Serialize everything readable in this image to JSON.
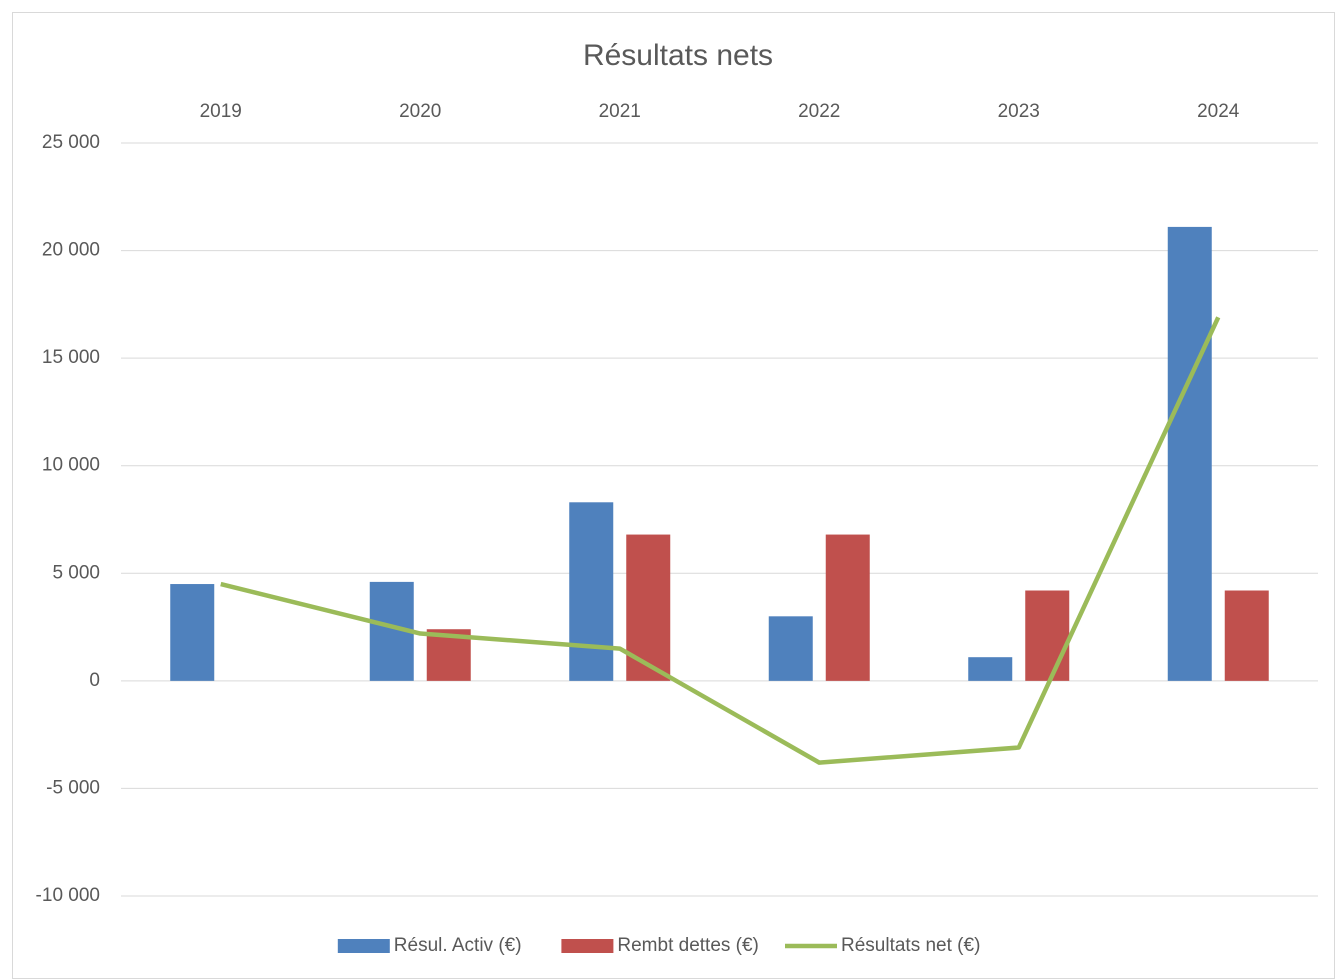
{
  "chart_data": {
    "type": "bar",
    "title": "Résultats nets",
    "categories": [
      "2019",
      "2020",
      "2021",
      "2022",
      "2023",
      "2024"
    ],
    "series": [
      {
        "name": "Résul. Activ (€)",
        "color": "#4f81bd",
        "type": "bar",
        "values": [
          4500,
          4600,
          8300,
          3000,
          1100,
          21100
        ]
      },
      {
        "name": "Rembt dettes (€)",
        "color": "#c0504d",
        "type": "bar",
        "values": [
          0,
          2400,
          6800,
          6800,
          4200,
          4200
        ]
      },
      {
        "name": "Résultats net (€)",
        "color": "#9bbb59",
        "type": "line",
        "values": [
          4500,
          2200,
          1500,
          -3800,
          -3100,
          16900
        ]
      }
    ],
    "ylim": [
      -10000,
      25000
    ],
    "yticks": [
      {
        "value": -10000,
        "label": "-10 000"
      },
      {
        "value": -5000,
        "label": "-5 000"
      },
      0,
      {
        "value": 5000,
        "label": "5 000"
      },
      {
        "value": 10000,
        "label": "10 000"
      },
      {
        "value": 15000,
        "label": "15 000"
      },
      {
        "value": 20000,
        "label": "20 000"
      },
      {
        "value": 25000,
        "label": "25 000"
      }
    ],
    "grid": true,
    "legend": "bottom"
  }
}
